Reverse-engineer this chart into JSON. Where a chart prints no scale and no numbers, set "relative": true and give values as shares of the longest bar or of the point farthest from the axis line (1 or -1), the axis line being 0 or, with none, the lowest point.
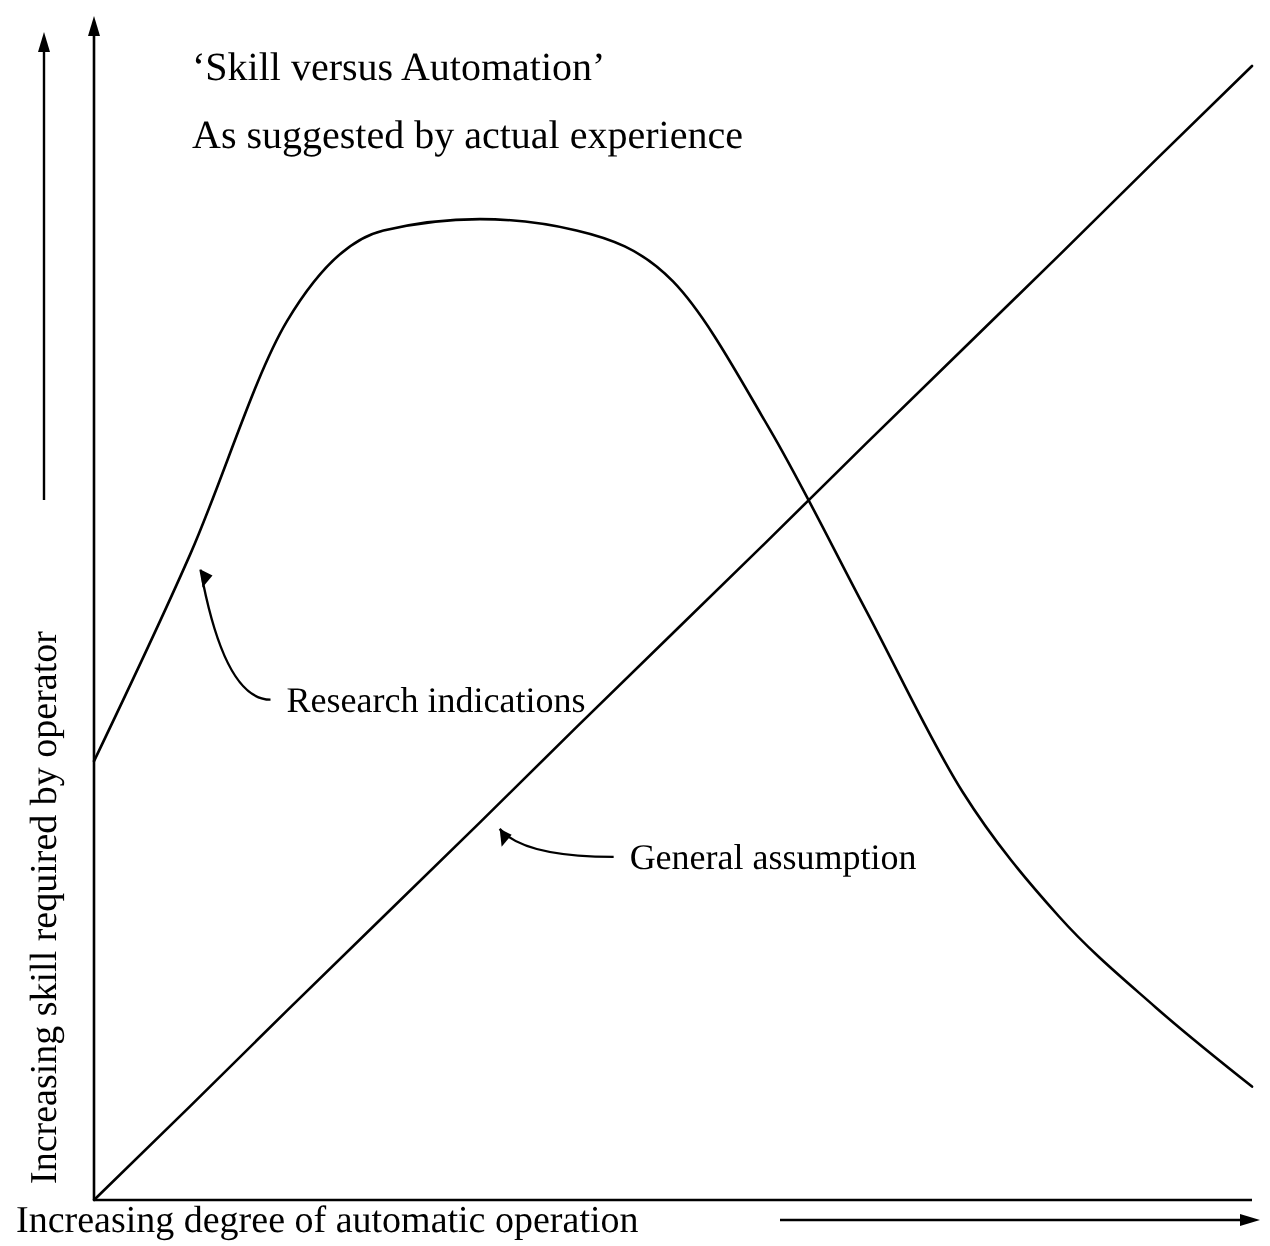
{
  "chart_data": {
    "type": "line",
    "title": "‘Skill versus Automation’",
    "subtitle": "As suggested by actual experience",
    "xlabel": "Increasing degree of automatic operation",
    "ylabel": "Increasing skill required by operator",
    "relative": true,
    "annotations": [
      "Research indications",
      "General assumption"
    ],
    "categories": [
      null,
      null,
      null,
      null,
      null,
      null,
      null,
      null,
      null,
      null,
      null,
      null,
      null
    ],
    "grid": false,
    "marker": "none",
    "line_style": "solid",
    "series": [
      {
        "color": "#000000",
        "values": [
          0.387,
          0.57,
          0.775,
          0.855,
          0.865,
          0.855,
          0.81,
          0.68,
          0.52,
          0.36,
          0.25,
          0.17,
          0.1
        ]
      },
      {
        "color": "#000000",
        "values": [
          0,
          0.083,
          0.167,
          0.25,
          0.333,
          0.417,
          0.5,
          0.583,
          0.667,
          0.75,
          0.833,
          0.917,
          1
        ]
      }
    ]
  }
}
